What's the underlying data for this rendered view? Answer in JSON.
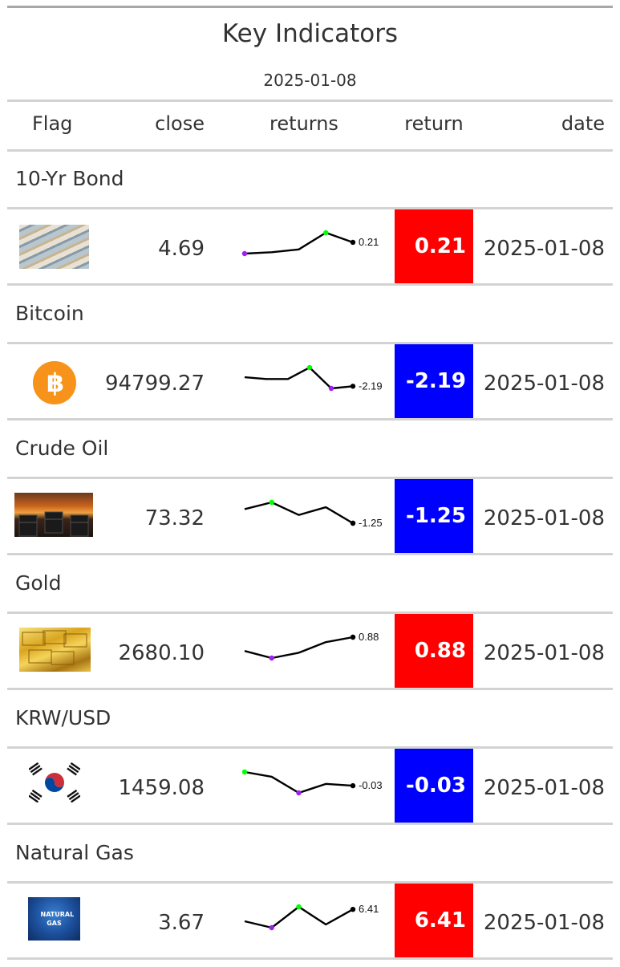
{
  "header": {
    "title": "Key Indicators",
    "subtitle": "2025-01-08"
  },
  "columns": [
    "Flag",
    "close",
    "returns",
    "return",
    "date"
  ],
  "colors": {
    "positive": "#ff0000",
    "negative": "#0000ff",
    "spark_line": "#000000",
    "spark_max": "#00ff00",
    "spark_min": "#a020f0",
    "rule_top": "#a8a8a8",
    "rule": "#d3d3d3"
  },
  "rows": [
    {
      "group": "10-Yr Bond",
      "flag_icon": "bond-certificates-image",
      "close": "4.69",
      "spark": [
        -0.6,
        -0.5,
        -0.3,
        0.9,
        0.21
      ],
      "spark_label": "0.21",
      "return": "0.21",
      "return_sign": "positive",
      "date": "2025-01-08"
    },
    {
      "group": "Bitcoin",
      "flag_icon": "bitcoin-logo",
      "close": "94799.27",
      "spark": [
        0.3,
        -0.2,
        -0.2,
        3.0,
        -2.8,
        -2.19
      ],
      "spark_label": "-2.19",
      "return": "-2.19",
      "return_sign": "negative",
      "date": "2025-01-08"
    },
    {
      "group": "Crude Oil",
      "flag_icon": "oil-barrels-image",
      "close": "73.32",
      "spark": [
        0.2,
        0.9,
        -0.4,
        0.4,
        -1.25
      ],
      "spark_label": "-1.25",
      "return": "-1.25",
      "return_sign": "negative",
      "date": "2025-01-08"
    },
    {
      "group": "Gold",
      "flag_icon": "gold-bars-image",
      "close": "2680.10",
      "spark": [
        0.1,
        -0.3,
        0.0,
        0.6,
        0.88
      ],
      "spark_label": "0.88",
      "return": "0.88",
      "return_sign": "positive",
      "date": "2025-01-08"
    },
    {
      "group": "KRW/USD",
      "flag_icon": "south-korea-flag",
      "close": "1459.08",
      "spark": [
        0.2,
        0.12,
        -0.15,
        0.0,
        -0.03
      ],
      "spark_label": "-0.03",
      "return": "-0.03",
      "return_sign": "negative",
      "date": "2025-01-08"
    },
    {
      "group": "Natural Gas",
      "flag_icon": "natural-gas-image",
      "close": "3.67",
      "flag_text": "NATURAL GAS",
      "spark": [
        -1.0,
        -5.0,
        8.0,
        -3.0,
        6.41
      ],
      "spark_label": "6.41",
      "return": "6.41",
      "return_sign": "positive",
      "date": "2025-01-08"
    }
  ]
}
